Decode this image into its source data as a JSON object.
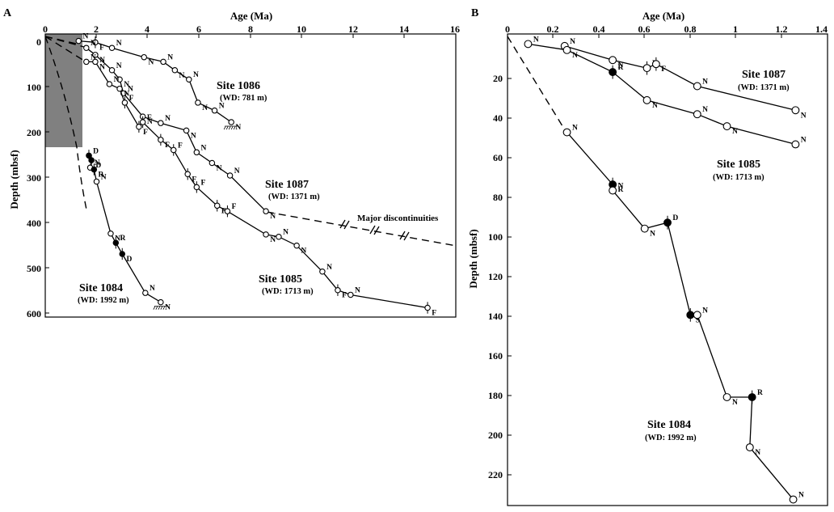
{
  "chart_data": [
    {
      "panel": "A",
      "type": "line",
      "xlabel": "Age (Ma)",
      "ylabel": "Depth (mbsf)",
      "xlim": [
        0,
        16
      ],
      "ylim": [
        610,
        0
      ],
      "x_axis_position": "top",
      "xticks": [
        "0",
        "2",
        "4",
        "6",
        "8",
        "10",
        "12",
        "14",
        "16"
      ],
      "yticks": [
        "0",
        "100",
        "200",
        "300",
        "400",
        "500",
        "600"
      ],
      "grid": false,
      "shaded_region": {
        "x": [
          0,
          1.42
        ],
        "y": [
          0,
          235
        ]
      },
      "annotation": "Major discontinuities",
      "series": [
        {
          "name": "Site 1086",
          "wd": "(WD: 781 m)",
          "points": [
            {
              "x": 1.3,
              "y": 15,
              "m": "N"
            },
            {
              "x": 1.95,
              "y": 18,
              "m": "F"
            },
            {
              "x": 2.6,
              "y": 30,
              "m": "N"
            },
            {
              "x": 3.85,
              "y": 50,
              "m": "N"
            },
            {
              "x": 4.6,
              "y": 60,
              "m": "N"
            },
            {
              "x": 5.05,
              "y": 78,
              "m": "N"
            },
            {
              "x": 5.6,
              "y": 98,
              "m": "N"
            },
            {
              "x": 5.95,
              "y": 148,
              "m": "N"
            },
            {
              "x": 6.6,
              "y": 165,
              "m": "N"
            },
            {
              "x": 7.25,
              "y": 190,
              "m": "N"
            }
          ]
        },
        {
          "name": "Site 1087",
          "wd": "(WD: 1371 m)",
          "points": [
            {
              "x": 1.6,
              "y": 30,
              "m": "N"
            },
            {
              "x": 1.95,
              "y": 45,
              "m": "N"
            },
            {
              "x": 2.6,
              "y": 78,
              "m": "N"
            },
            {
              "x": 2.9,
              "y": 98,
              "m": "N"
            },
            {
              "x": 3.05,
              "y": 128,
              "m": "N"
            },
            {
              "x": 3.8,
              "y": 178,
              "m": "N"
            },
            {
              "x": 4.5,
              "y": 192,
              "m": "N"
            },
            {
              "x": 5.5,
              "y": 208,
              "m": "N"
            },
            {
              "x": 5.9,
              "y": 255,
              "m": "N"
            },
            {
              "x": 6.5,
              "y": 278,
              "m": "N"
            },
            {
              "x": 7.2,
              "y": 305,
              "m": "N"
            },
            {
              "x": 8.6,
              "y": 382,
              "m": "N"
            }
          ]
        },
        {
          "name": "Site 1085",
          "wd": "(WD: 1713 m)",
          "points": [
            {
              "x": 1.6,
              "y": 60,
              "m": "N"
            },
            {
              "x": 1.95,
              "y": 60,
              "m": "N"
            },
            {
              "x": 2.5,
              "y": 108,
              "m": "N"
            },
            {
              "x": 2.9,
              "y": 118,
              "m": "N"
            },
            {
              "x": 3.1,
              "y": 148,
              "m": "F"
            },
            {
              "x": 3.65,
              "y": 200,
              "m": "F"
            },
            {
              "x": 3.8,
              "y": 190,
              "m": "F"
            },
            {
              "x": 4.5,
              "y": 228,
              "m": "F"
            },
            {
              "x": 5.0,
              "y": 250,
              "m": "F"
            },
            {
              "x": 5.55,
              "y": 302,
              "m": "F"
            },
            {
              "x": 5.9,
              "y": 330,
              "m": "F"
            },
            {
              "x": 6.7,
              "y": 370,
              "m": "F"
            },
            {
              "x": 7.1,
              "y": 382,
              "m": "F"
            },
            {
              "x": 8.6,
              "y": 432,
              "m": "N"
            },
            {
              "x": 9.1,
              "y": 437,
              "m": "N"
            },
            {
              "x": 9.8,
              "y": 456,
              "m": "N"
            },
            {
              "x": 10.8,
              "y": 512,
              "m": "N"
            },
            {
              "x": 11.4,
              "y": 552,
              "m": "F"
            },
            {
              "x": 11.9,
              "y": 562,
              "m": "N"
            },
            {
              "x": 14.9,
              "y": 590,
              "m": "F"
            }
          ]
        },
        {
          "name": "Site 1084",
          "wd": "(WD: 1992 m)",
          "points": [
            {
              "x": 1.7,
              "y": 262,
              "m": "D"
            },
            {
              "x": 1.8,
              "y": 272,
              "m": "D"
            },
            {
              "x": 1.75,
              "y": 288,
              "m": "N"
            },
            {
              "x": 1.9,
              "y": 292,
              "m": "R"
            },
            {
              "x": 2.0,
              "y": 318,
              "m": "N"
            },
            {
              "x": 2.55,
              "y": 430,
              "m": "N"
            },
            {
              "x": 2.75,
              "y": 450,
              "m": "R"
            },
            {
              "x": 3.0,
              "y": 474,
              "m": "D"
            },
            {
              "x": 3.9,
              "y": 558,
              "m": "N"
            },
            {
              "x": 4.5,
              "y": 578,
              "m": "N"
            }
          ]
        }
      ]
    },
    {
      "panel": "B",
      "type": "line",
      "xlabel": "Age (Ma)",
      "ylabel": "Depth (mbsf)",
      "xlim": [
        0,
        1.4
      ],
      "ylim": [
        235,
        0
      ],
      "x_axis_position": "top",
      "xticks": [
        "0",
        "0.2",
        "0.4",
        "0.6",
        "0.8",
        "1",
        "1.2",
        "1.4"
      ],
      "yticks": [
        "20",
        "40",
        "60",
        "80",
        "100",
        "120",
        "140",
        "160",
        "180",
        "200",
        "220"
      ],
      "grid": false,
      "series": [
        {
          "name": "Site 1087",
          "wd": "(WD: 1371 m)",
          "points": [
            {
              "x": 0.25,
              "y": 6,
              "m": "N"
            },
            {
              "x": 0.46,
              "y": 13,
              "m": "N"
            },
            {
              "x": 0.61,
              "y": 17,
              "m": "F"
            },
            {
              "x": 0.65,
              "y": 15,
              "m": "F"
            },
            {
              "x": 0.83,
              "y": 26,
              "m": "N"
            },
            {
              "x": 1.26,
              "y": 38,
              "m": "N"
            }
          ]
        },
        {
          "name": "Site 1085",
          "wd": "(WD: 1713 m)",
          "points": [
            {
              "x": 0.09,
              "y": 5,
              "m": "N"
            },
            {
              "x": 0.26,
              "y": 8,
              "m": "N"
            },
            {
              "x": 0.46,
              "y": 19,
              "m": "R"
            },
            {
              "x": 0.61,
              "y": 33,
              "m": "N"
            },
            {
              "x": 0.83,
              "y": 40,
              "m": "N"
            },
            {
              "x": 0.96,
              "y": 46,
              "m": "N"
            },
            {
              "x": 1.26,
              "y": 55,
              "m": "N"
            }
          ]
        },
        {
          "name": "Site 1084",
          "wd": "(WD: 1992 m)",
          "points": [
            {
              "x": 0.26,
              "y": 49,
              "m": "N"
            },
            {
              "x": 0.46,
              "y": 75,
              "m": "R"
            },
            {
              "x": 0.46,
              "y": 78,
              "m": "N"
            },
            {
              "x": 0.6,
              "y": 97,
              "m": "N"
            },
            {
              "x": 0.7,
              "y": 94,
              "m": "D"
            },
            {
              "x": 0.8,
              "y": 140,
              "m": "S"
            },
            {
              "x": 0.83,
              "y": 140,
              "m": "N"
            },
            {
              "x": 0.96,
              "y": 181,
              "m": "N"
            },
            {
              "x": 1.07,
              "y": 181,
              "m": "R"
            },
            {
              "x": 1.06,
              "y": 206,
              "m": "N"
            },
            {
              "x": 1.25,
              "y": 232,
              "m": "N"
            }
          ]
        }
      ]
    }
  ]
}
